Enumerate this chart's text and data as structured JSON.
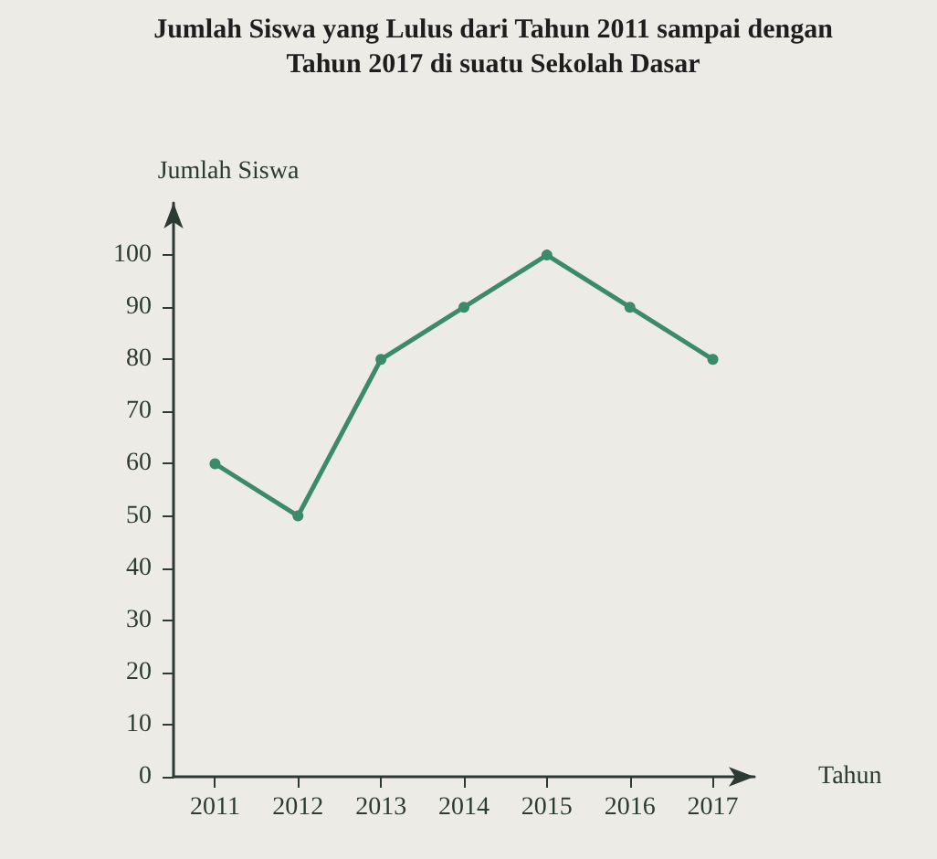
{
  "chart_data": {
    "type": "line",
    "title": "Jumlah Siswa yang Lulus dari Tahun 2011 sampai dengan\nTahun 2017 di suatu Sekolah Dasar",
    "xlabel": "Tahun",
    "ylabel": "Jumlah Siswa",
    "categories": [
      "2011",
      "2012",
      "2013",
      "2014",
      "2015",
      "2016",
      "2017"
    ],
    "series": [
      {
        "color": "#3d8a6a",
        "values": [
          60,
          50,
          80,
          90,
          100,
          90,
          80
        ]
      }
    ],
    "ylim": [
      0,
      110
    ],
    "yticks": [
      0,
      10,
      20,
      30,
      40,
      50,
      60,
      70,
      80,
      90,
      100
    ],
    "marker": "circle",
    "line_style": "solid"
  }
}
